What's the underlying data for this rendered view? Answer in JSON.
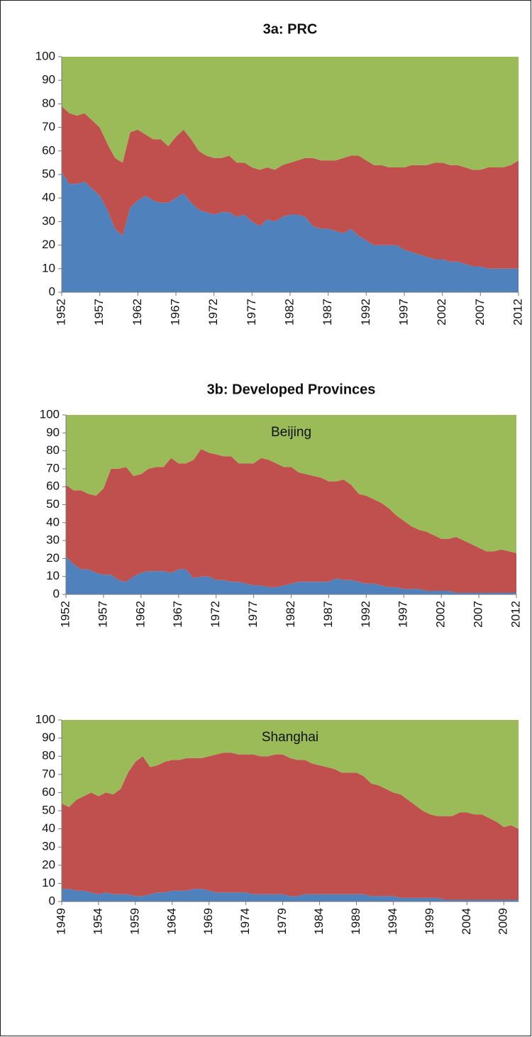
{
  "chart_data": [
    {
      "type": "area",
      "title": "3a: PRC",
      "x": [
        1952,
        1953,
        1954,
        1955,
        1956,
        1957,
        1958,
        1959,
        1960,
        1961,
        1962,
        1963,
        1964,
        1965,
        1966,
        1967,
        1968,
        1969,
        1970,
        1971,
        1972,
        1973,
        1974,
        1975,
        1976,
        1977,
        1978,
        1979,
        1980,
        1981,
        1982,
        1983,
        1984,
        1985,
        1986,
        1987,
        1988,
        1989,
        1990,
        1991,
        1992,
        1993,
        1994,
        1995,
        1996,
        1997,
        1998,
        1999,
        2000,
        2001,
        2002,
        2003,
        2004,
        2005,
        2006,
        2007,
        2008,
        2009,
        2010,
        2011,
        2012
      ],
      "series": [
        {
          "color": "#4f81bd",
          "values": [
            51,
            46,
            46,
            47,
            44,
            41,
            35,
            27,
            24,
            36,
            39,
            41,
            39,
            38,
            38,
            40,
            42,
            38,
            35,
            34,
            33,
            34,
            34,
            32,
            33,
            30,
            28,
            31,
            30,
            32,
            33,
            33,
            32,
            28,
            27,
            27,
            26,
            25,
            27,
            24,
            22,
            20,
            20,
            20,
            20,
            18,
            17,
            16,
            15,
            14,
            14,
            13,
            13,
            12,
            11,
            11,
            10,
            10,
            10,
            10,
            10
          ]
        },
        {
          "color": "#c0504d",
          "values": [
            28,
            30,
            29,
            29,
            29,
            29,
            28,
            30,
            31,
            32,
            30,
            26,
            26,
            27,
            24,
            26,
            27,
            27,
            25,
            24,
            24,
            23,
            24,
            23,
            22,
            23,
            24,
            22,
            22,
            22,
            22,
            23,
            25,
            29,
            29,
            29,
            30,
            32,
            31,
            34,
            34,
            34,
            34,
            33,
            33,
            35,
            37,
            38,
            39,
            41,
            41,
            41,
            41,
            41,
            41,
            41,
            43,
            43,
            43,
            44,
            46
          ]
        },
        {
          "color": "#9bbb59",
          "values": [
            21,
            24,
            25,
            24,
            27,
            30,
            37,
            43,
            45,
            32,
            31,
            33,
            35,
            35,
            38,
            34,
            31,
            35,
            40,
            42,
            43,
            43,
            42,
            45,
            45,
            47,
            48,
            47,
            48,
            46,
            45,
            44,
            43,
            43,
            44,
            44,
            44,
            43,
            42,
            42,
            44,
            46,
            46,
            47,
            47,
            47,
            46,
            46,
            46,
            45,
            45,
            46,
            46,
            47,
            48,
            48,
            47,
            47,
            47,
            46,
            44
          ]
        }
      ],
      "xlim": [
        1952,
        2012
      ],
      "xticks": [
        1952,
        1957,
        1962,
        1967,
        1972,
        1977,
        1982,
        1987,
        1992,
        1997,
        2002,
        2007,
        2012
      ],
      "ylim": [
        0,
        100
      ],
      "yticks": [
        0,
        10,
        20,
        30,
        40,
        50,
        60,
        70,
        80,
        90,
        100
      ],
      "stacked": true
    },
    {
      "type": "area",
      "title": "3b: Developed Provinces",
      "annotation": "Beijing",
      "x": [
        1952,
        1953,
        1954,
        1955,
        1956,
        1957,
        1958,
        1959,
        1960,
        1961,
        1962,
        1963,
        1964,
        1965,
        1966,
        1967,
        1968,
        1969,
        1970,
        1971,
        1972,
        1973,
        1974,
        1975,
        1976,
        1977,
        1978,
        1979,
        1980,
        1981,
        1982,
        1983,
        1984,
        1985,
        1986,
        1987,
        1988,
        1989,
        1990,
        1991,
        1992,
        1993,
        1994,
        1995,
        1996,
        1997,
        1998,
        1999,
        2000,
        2001,
        2002,
        2003,
        2004,
        2005,
        2006,
        2007,
        2008,
        2009,
        2010,
        2011,
        2012
      ],
      "series": [
        {
          "color": "#4f81bd",
          "values": [
            21,
            17,
            14,
            14,
            12,
            11,
            11,
            8,
            7,
            10,
            12,
            13,
            13,
            13,
            12,
            14,
            14,
            9,
            10,
            10,
            8,
            8,
            7,
            7,
            6,
            5,
            5,
            4,
            4,
            5,
            6,
            7,
            7,
            7,
            7,
            7,
            9,
            8,
            8,
            7,
            6,
            6,
            5,
            4,
            4,
            3,
            3,
            3,
            2,
            2,
            2,
            2,
            1,
            1,
            1,
            1,
            1,
            1,
            1,
            1,
            1
          ]
        },
        {
          "color": "#c0504d",
          "values": [
            40,
            41,
            44,
            42,
            43,
            48,
            59,
            62,
            64,
            56,
            55,
            57,
            58,
            58,
            64,
            59,
            59,
            66,
            71,
            69,
            70,
            69,
            70,
            66,
            67,
            68,
            71,
            71,
            69,
            66,
            65,
            61,
            60,
            59,
            58,
            56,
            54,
            56,
            53,
            49,
            49,
            47,
            46,
            44,
            40,
            38,
            35,
            33,
            33,
            31,
            29,
            29,
            31,
            29,
            27,
            25,
            23,
            23,
            24,
            23,
            22
          ]
        },
        {
          "color": "#9bbb59",
          "values": [
            39,
            42,
            42,
            44,
            45,
            41,
            30,
            30,
            29,
            34,
            33,
            30,
            29,
            29,
            24,
            27,
            27,
            25,
            19,
            21,
            22,
            23,
            23,
            27,
            27,
            27,
            24,
            25,
            27,
            29,
            29,
            32,
            33,
            34,
            35,
            37,
            37,
            36,
            39,
            44,
            45,
            47,
            49,
            52,
            56,
            59,
            62,
            64,
            65,
            67,
            69,
            69,
            68,
            70,
            72,
            74,
            76,
            76,
            75,
            76,
            77
          ]
        }
      ],
      "xlim": [
        1952,
        2012
      ],
      "xticks": [
        1952,
        1957,
        1962,
        1967,
        1972,
        1977,
        1982,
        1987,
        1992,
        1997,
        2002,
        2007,
        2012
      ],
      "ylim": [
        0,
        100
      ],
      "yticks": [
        0,
        10,
        20,
        30,
        40,
        50,
        60,
        70,
        80,
        90,
        100
      ],
      "stacked": true
    },
    {
      "type": "area",
      "annotation": "Shanghai",
      "x": [
        1949,
        1950,
        1951,
        1952,
        1953,
        1954,
        1955,
        1956,
        1957,
        1958,
        1959,
        1960,
        1961,
        1962,
        1963,
        1964,
        1965,
        1966,
        1967,
        1968,
        1969,
        1970,
        1971,
        1972,
        1973,
        1974,
        1975,
        1976,
        1977,
        1978,
        1979,
        1980,
        1981,
        1982,
        1983,
        1984,
        1985,
        1986,
        1987,
        1988,
        1989,
        1990,
        1991,
        1992,
        1993,
        1994,
        1995,
        1996,
        1997,
        1998,
        1999,
        2000,
        2001,
        2002,
        2003,
        2004,
        2005,
        2006,
        2007,
        2008,
        2009,
        2010,
        2011
      ],
      "series": [
        {
          "color": "#4f81bd",
          "values": [
            7,
            7,
            6,
            6,
            5,
            4,
            5,
            4,
            4,
            4,
            3,
            3,
            4,
            5,
            5,
            6,
            6,
            6,
            7,
            7,
            6,
            5,
            5,
            5,
            5,
            5,
            4,
            4,
            4,
            4,
            4,
            3,
            3,
            4,
            4,
            4,
            4,
            4,
            4,
            4,
            4,
            4,
            3,
            3,
            3,
            3,
            2,
            2,
            2,
            2,
            2,
            2,
            1,
            1,
            1,
            1,
            1,
            1,
            1,
            1,
            1,
            1,
            1
          ]
        },
        {
          "color": "#c0504d",
          "values": [
            47,
            45,
            50,
            52,
            55,
            54,
            55,
            55,
            58,
            67,
            74,
            77,
            70,
            70,
            72,
            72,
            72,
            73,
            72,
            72,
            74,
            76,
            77,
            77,
            76,
            76,
            77,
            76,
            76,
            77,
            77,
            76,
            75,
            74,
            72,
            71,
            70,
            69,
            67,
            67,
            67,
            65,
            62,
            61,
            59,
            57,
            57,
            54,
            51,
            48,
            46,
            45,
            46,
            46,
            48,
            48,
            47,
            47,
            45,
            43,
            40,
            41,
            39
          ]
        },
        {
          "color": "#9bbb59",
          "values": [
            46,
            48,
            44,
            42,
            40,
            42,
            40,
            41,
            38,
            29,
            23,
            20,
            26,
            25,
            23,
            22,
            22,
            21,
            21,
            21,
            20,
            19,
            18,
            18,
            19,
            19,
            19,
            20,
            20,
            19,
            19,
            21,
            22,
            22,
            24,
            25,
            26,
            27,
            29,
            29,
            29,
            31,
            35,
            36,
            38,
            40,
            41,
            44,
            47,
            50,
            52,
            53,
            53,
            53,
            51,
            51,
            52,
            52,
            54,
            56,
            59,
            58,
            60
          ]
        }
      ],
      "xlim": [
        1949,
        2011
      ],
      "xticks": [
        1949,
        1954,
        1959,
        1964,
        1969,
        1974,
        1979,
        1984,
        1989,
        1994,
        1999,
        2004,
        2009
      ],
      "ylim": [
        0,
        100
      ],
      "yticks": [
        0,
        10,
        20,
        30,
        40,
        50,
        60,
        70,
        80,
        90,
        100
      ],
      "stacked": true
    }
  ]
}
